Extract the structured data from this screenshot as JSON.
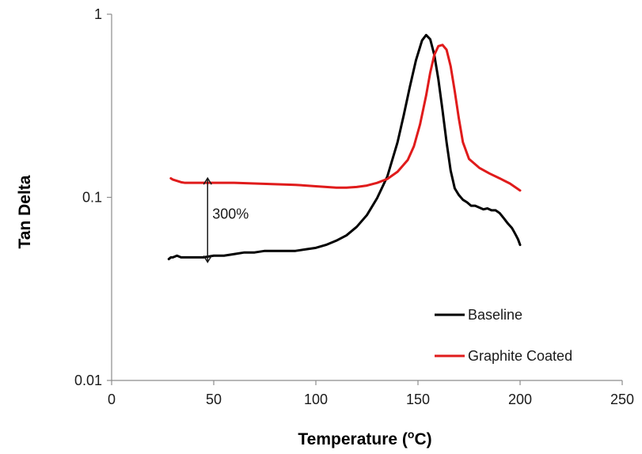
{
  "chart_data": {
    "type": "line",
    "title": "",
    "xlabel_main": "Temperature (",
    "xlabel_sup": "o",
    "xlabel_tail": "C)",
    "ylabel": "Tan Delta",
    "xlim": [
      0,
      250
    ],
    "ylim": [
      0.01,
      1
    ],
    "yscale": "log",
    "xticks": [
      0,
      50,
      100,
      150,
      200,
      250
    ],
    "xtick_labels": [
      "0",
      "50",
      "100",
      "150",
      "200",
      "250"
    ],
    "yticks": [
      0.01,
      0.1,
      1
    ],
    "ytick_labels": [
      "0.01",
      "0.1",
      "1"
    ],
    "grid": false,
    "legend_position": "lower-right",
    "annotation": {
      "text": "300%",
      "x": 47,
      "y_from": 0.047,
      "y_to": 0.12
    },
    "series": [
      {
        "name": "Baseline",
        "color": "#000000",
        "x": [
          28,
          29,
          30,
          32,
          34,
          36,
          40,
          45,
          50,
          55,
          60,
          65,
          70,
          75,
          80,
          85,
          90,
          95,
          100,
          105,
          110,
          115,
          120,
          125,
          130,
          135,
          140,
          143,
          146,
          149,
          152,
          154,
          156,
          158,
          160,
          162,
          164,
          166,
          168,
          170,
          172,
          174,
          176,
          178,
          180,
          182,
          184,
          186,
          188,
          190,
          192,
          194,
          196,
          197,
          198,
          199,
          200
        ],
        "y": [
          0.046,
          0.047,
          0.047,
          0.048,
          0.047,
          0.047,
          0.047,
          0.047,
          0.048,
          0.048,
          0.049,
          0.05,
          0.05,
          0.051,
          0.051,
          0.051,
          0.051,
          0.052,
          0.053,
          0.055,
          0.058,
          0.062,
          0.069,
          0.08,
          0.099,
          0.13,
          0.2,
          0.28,
          0.4,
          0.56,
          0.72,
          0.77,
          0.73,
          0.6,
          0.44,
          0.3,
          0.2,
          0.14,
          0.112,
          0.103,
          0.097,
          0.094,
          0.09,
          0.09,
          0.088,
          0.086,
          0.087,
          0.085,
          0.085,
          0.082,
          0.077,
          0.072,
          0.068,
          0.065,
          0.062,
          0.059,
          0.055
        ]
      },
      {
        "name": "Graphite Coated",
        "color": "#e01b1b",
        "x": [
          29,
          30,
          32,
          34,
          36,
          40,
          50,
          60,
          70,
          80,
          90,
          100,
          110,
          115,
          120,
          125,
          130,
          135,
          140,
          145,
          148,
          151,
          154,
          156,
          158,
          160,
          162,
          164,
          166,
          168,
          170,
          172,
          175,
          180,
          185,
          190,
          195,
          200
        ],
        "y": [
          0.127,
          0.125,
          0.123,
          0.121,
          0.12,
          0.12,
          0.12,
          0.12,
          0.119,
          0.118,
          0.117,
          0.115,
          0.113,
          0.113,
          0.114,
          0.116,
          0.12,
          0.126,
          0.138,
          0.16,
          0.19,
          0.25,
          0.36,
          0.48,
          0.6,
          0.67,
          0.68,
          0.64,
          0.52,
          0.38,
          0.27,
          0.2,
          0.162,
          0.145,
          0.135,
          0.127,
          0.119,
          0.109
        ]
      }
    ]
  }
}
